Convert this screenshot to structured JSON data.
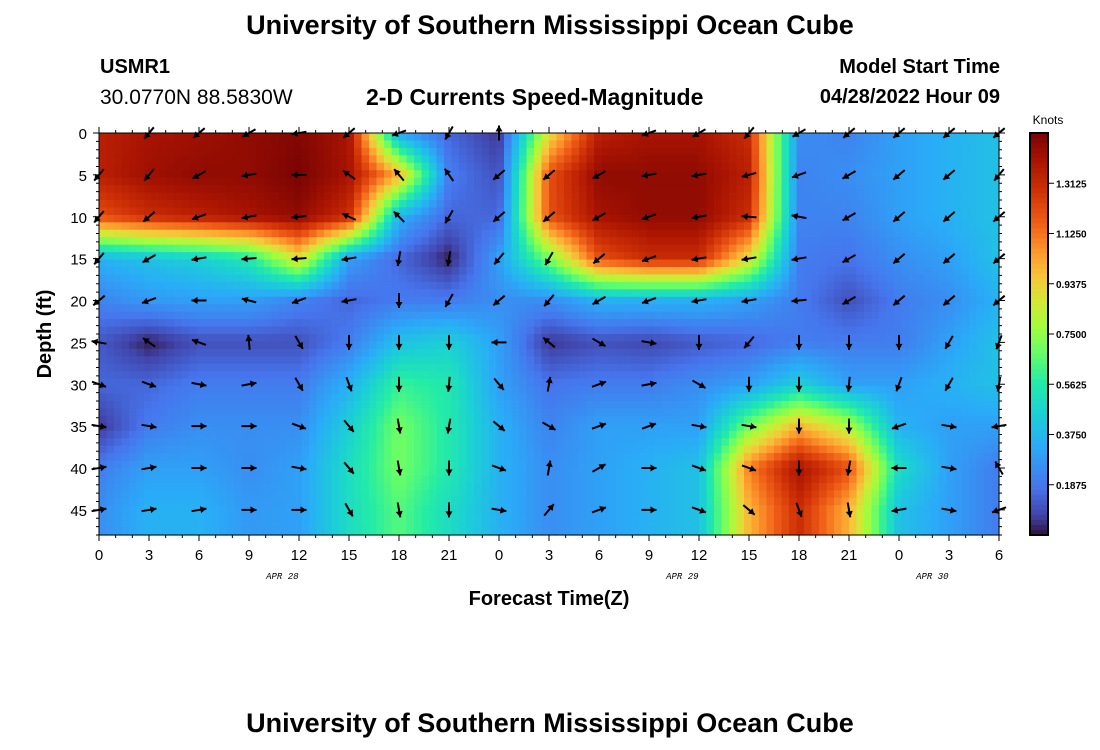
{
  "header": {
    "title": "University of Southern Mississippi Ocean Cube",
    "station_id": "USMR1",
    "coordinates": "30.0770N  88.5830W",
    "subtitle": "2-D Currents Speed-Magnitude",
    "model_start_label": "Model Start Time",
    "model_start_value": "04/28/2022 Hour 09"
  },
  "footer": {
    "title": "University of Southern Mississippi Ocean Cube"
  },
  "chart_data": {
    "type": "heatmap",
    "title": "2-D Currents Speed-Magnitude",
    "xlabel": "Forecast Time(Z)",
    "ylabel": "Depth (ft)",
    "x_tick_labels": [
      "0",
      "3",
      "6",
      "9",
      "12",
      "15",
      "18",
      "21",
      "0",
      "3",
      "6",
      "9",
      "12",
      "15",
      "18",
      "21",
      "0",
      "3",
      "6"
    ],
    "x_hours": [
      0,
      3,
      6,
      9,
      12,
      15,
      18,
      21,
      24,
      27,
      30,
      33,
      36,
      39,
      42,
      45,
      48,
      51,
      54
    ],
    "date_labels": [
      {
        "label": "APR 28",
        "hour": 11
      },
      {
        "label": "APR 29",
        "hour": 35
      },
      {
        "label": "APR 30",
        "hour": 50
      }
    ],
    "y_ticks": [
      0,
      5,
      10,
      15,
      20,
      25,
      30,
      35,
      40,
      45
    ],
    "ylim": [
      0,
      48
    ],
    "xlim": [
      0,
      54
    ],
    "colorbar": {
      "unit": "Knots",
      "min": 0,
      "max": 1.5,
      "ticks": [
        "1.3125",
        "1.1250",
        "0.9375",
        "0.7500",
        "0.5625",
        "0.3750",
        "0.1875"
      ],
      "tick_values": [
        1.3125,
        1.125,
        0.9375,
        0.75,
        0.5625,
        0.375,
        0.1875
      ]
    },
    "speed_knots": [
      [
        1.35,
        1.4,
        1.42,
        1.45,
        1.48,
        1.4,
        0.3,
        0.15,
        0.05,
        0.9,
        1.35,
        1.4,
        1.4,
        1.3,
        0.25,
        0.22,
        0.3,
        0.35,
        0.4
      ],
      [
        1.35,
        1.42,
        1.45,
        1.45,
        1.5,
        1.4,
        1.0,
        0.2,
        0.1,
        1.2,
        1.45,
        1.45,
        1.45,
        1.35,
        0.22,
        0.25,
        0.3,
        0.35,
        0.4
      ],
      [
        1.2,
        1.3,
        1.35,
        1.4,
        1.45,
        1.3,
        0.35,
        0.15,
        0.15,
        1.2,
        1.4,
        1.45,
        1.45,
        1.3,
        0.22,
        0.22,
        0.3,
        0.35,
        0.4
      ],
      [
        0.35,
        0.4,
        0.45,
        0.55,
        0.9,
        0.3,
        0.15,
        0.02,
        0.3,
        0.7,
        1.2,
        1.3,
        1.3,
        0.9,
        0.2,
        0.18,
        0.25,
        0.3,
        0.4
      ],
      [
        0.22,
        0.28,
        0.3,
        0.3,
        0.22,
        0.15,
        0.2,
        0.2,
        0.25,
        0.25,
        0.35,
        0.35,
        0.35,
        0.3,
        0.2,
        0.1,
        0.2,
        0.25,
        0.35
      ],
      [
        0.12,
        0.02,
        0.1,
        0.1,
        0.1,
        0.2,
        0.4,
        0.45,
        0.3,
        0.05,
        0.1,
        0.08,
        0.12,
        0.15,
        0.2,
        0.2,
        0.2,
        0.3,
        0.4
      ],
      [
        0.15,
        0.15,
        0.2,
        0.2,
        0.2,
        0.35,
        0.6,
        0.55,
        0.3,
        0.18,
        0.2,
        0.2,
        0.25,
        0.3,
        0.45,
        0.3,
        0.3,
        0.35,
        0.4
      ],
      [
        0.05,
        0.2,
        0.25,
        0.25,
        0.25,
        0.45,
        0.7,
        0.55,
        0.35,
        0.22,
        0.3,
        0.3,
        0.3,
        0.7,
        1.0,
        0.8,
        0.35,
        0.3,
        0.3
      ],
      [
        0.2,
        0.3,
        0.3,
        0.25,
        0.3,
        0.5,
        0.7,
        0.55,
        0.35,
        0.25,
        0.3,
        0.35,
        0.4,
        1.1,
        1.4,
        1.2,
        0.5,
        0.3,
        0.2
      ],
      [
        0.25,
        0.35,
        0.35,
        0.28,
        0.3,
        0.5,
        0.65,
        0.5,
        0.35,
        0.25,
        0.3,
        0.35,
        0.4,
        1.0,
        1.3,
        1.0,
        0.4,
        0.3,
        0.2
      ]
    ],
    "vector_angles_deg": [
      [
        null,
        -130,
        -140,
        -150,
        -170,
        -140,
        -160,
        -120,
        90,
        null,
        null,
        -160,
        -150,
        -130,
        -150,
        -140,
        -140,
        -140,
        -140
      ],
      [
        -130,
        -130,
        -150,
        -170,
        180,
        145,
        130,
        125,
        -140,
        -140,
        -150,
        -170,
        -170,
        -165,
        -160,
        -150,
        -140,
        -140,
        -130
      ],
      [
        -130,
        -140,
        -160,
        -170,
        -175,
        155,
        135,
        -120,
        -140,
        -140,
        -150,
        -160,
        -170,
        175,
        170,
        -150,
        -140,
        -140,
        -140
      ],
      [
        -130,
        -150,
        -170,
        -175,
        -175,
        -170,
        -100,
        -100,
        -130,
        -120,
        -140,
        -160,
        -170,
        -170,
        -170,
        -150,
        -140,
        -140,
        -140
      ],
      [
        -140,
        -160,
        180,
        165,
        -160,
        -170,
        -90,
        -120,
        -140,
        -130,
        -150,
        -160,
        -170,
        -170,
        -175,
        -150,
        -140,
        -140,
        -140
      ],
      [
        170,
        145,
        160,
        95,
        -60,
        -90,
        -90,
        -90,
        180,
        140,
        -30,
        -10,
        -90,
        -130,
        -90,
        -90,
        -90,
        -120,
        -110
      ],
      [
        -20,
        -20,
        -10,
        10,
        -60,
        -70,
        -90,
        -95,
        -50,
        80,
        20,
        10,
        -30,
        -90,
        -90,
        -95,
        -110,
        -120,
        -100
      ],
      [
        -10,
        -10,
        0,
        0,
        -20,
        -50,
        -80,
        -100,
        -40,
        -30,
        20,
        20,
        -10,
        -10,
        -90,
        -90,
        -160,
        -10,
        -170
      ],
      [
        10,
        10,
        0,
        0,
        -10,
        -50,
        -80,
        -90,
        -20,
        80,
        30,
        0,
        -20,
        -20,
        -90,
        -100,
        180,
        -10,
        120
      ],
      [
        10,
        10,
        10,
        0,
        0,
        -60,
        -80,
        -90,
        -10,
        50,
        20,
        0,
        -20,
        -40,
        -70,
        -80,
        -170,
        -10,
        -160
      ]
    ]
  }
}
